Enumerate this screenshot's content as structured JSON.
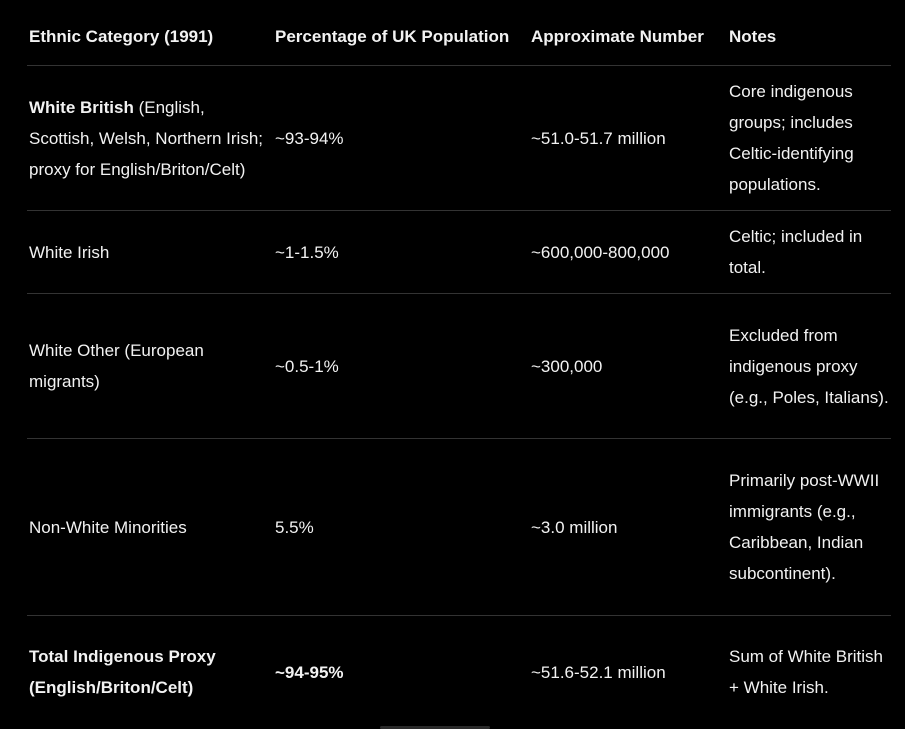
{
  "table": {
    "headers": [
      "Ethnic Category (1991)",
      "Percentage of UK Population",
      "Approximate Number",
      "Notes"
    ],
    "rows": [
      {
        "category_bold": "White British",
        "category_rest": " (English, Scottish, Welsh, Northern Irish; proxy for English/Briton/Celt)",
        "percentage": "~93-94%",
        "number": "~51.0-51.7 million",
        "notes": "Core indigenous groups; includes Celtic-identifying populations."
      },
      {
        "category_bold": "",
        "category_rest": "White Irish",
        "percentage": "~1-1.5%",
        "number": "~600,000-800,000",
        "notes": "Celtic; included in total."
      },
      {
        "category_bold": "",
        "category_rest": "White Other (European migrants)",
        "percentage": "~0.5-1%",
        "number": "~300,000",
        "notes": "Excluded from indigenous proxy (e.g., Poles, Italians)."
      },
      {
        "category_bold": "",
        "category_rest": "Non-White Minorities",
        "percentage": "5.5%",
        "number": "~3.0 million",
        "notes": "Primarily post-WWII immigrants (e.g., Caribbean, Indian subcontinent)."
      },
      {
        "category_bold": "Total Indigenous Proxy (English/Briton/Celt)",
        "category_rest": "",
        "percentage": "~94-95%",
        "number": "~51.6-52.1 million",
        "notes": "Sum of White British + White Irish."
      }
    ]
  },
  "colors": {
    "background": "#000000",
    "text": "#f2f2f2",
    "divider": "#333333"
  }
}
